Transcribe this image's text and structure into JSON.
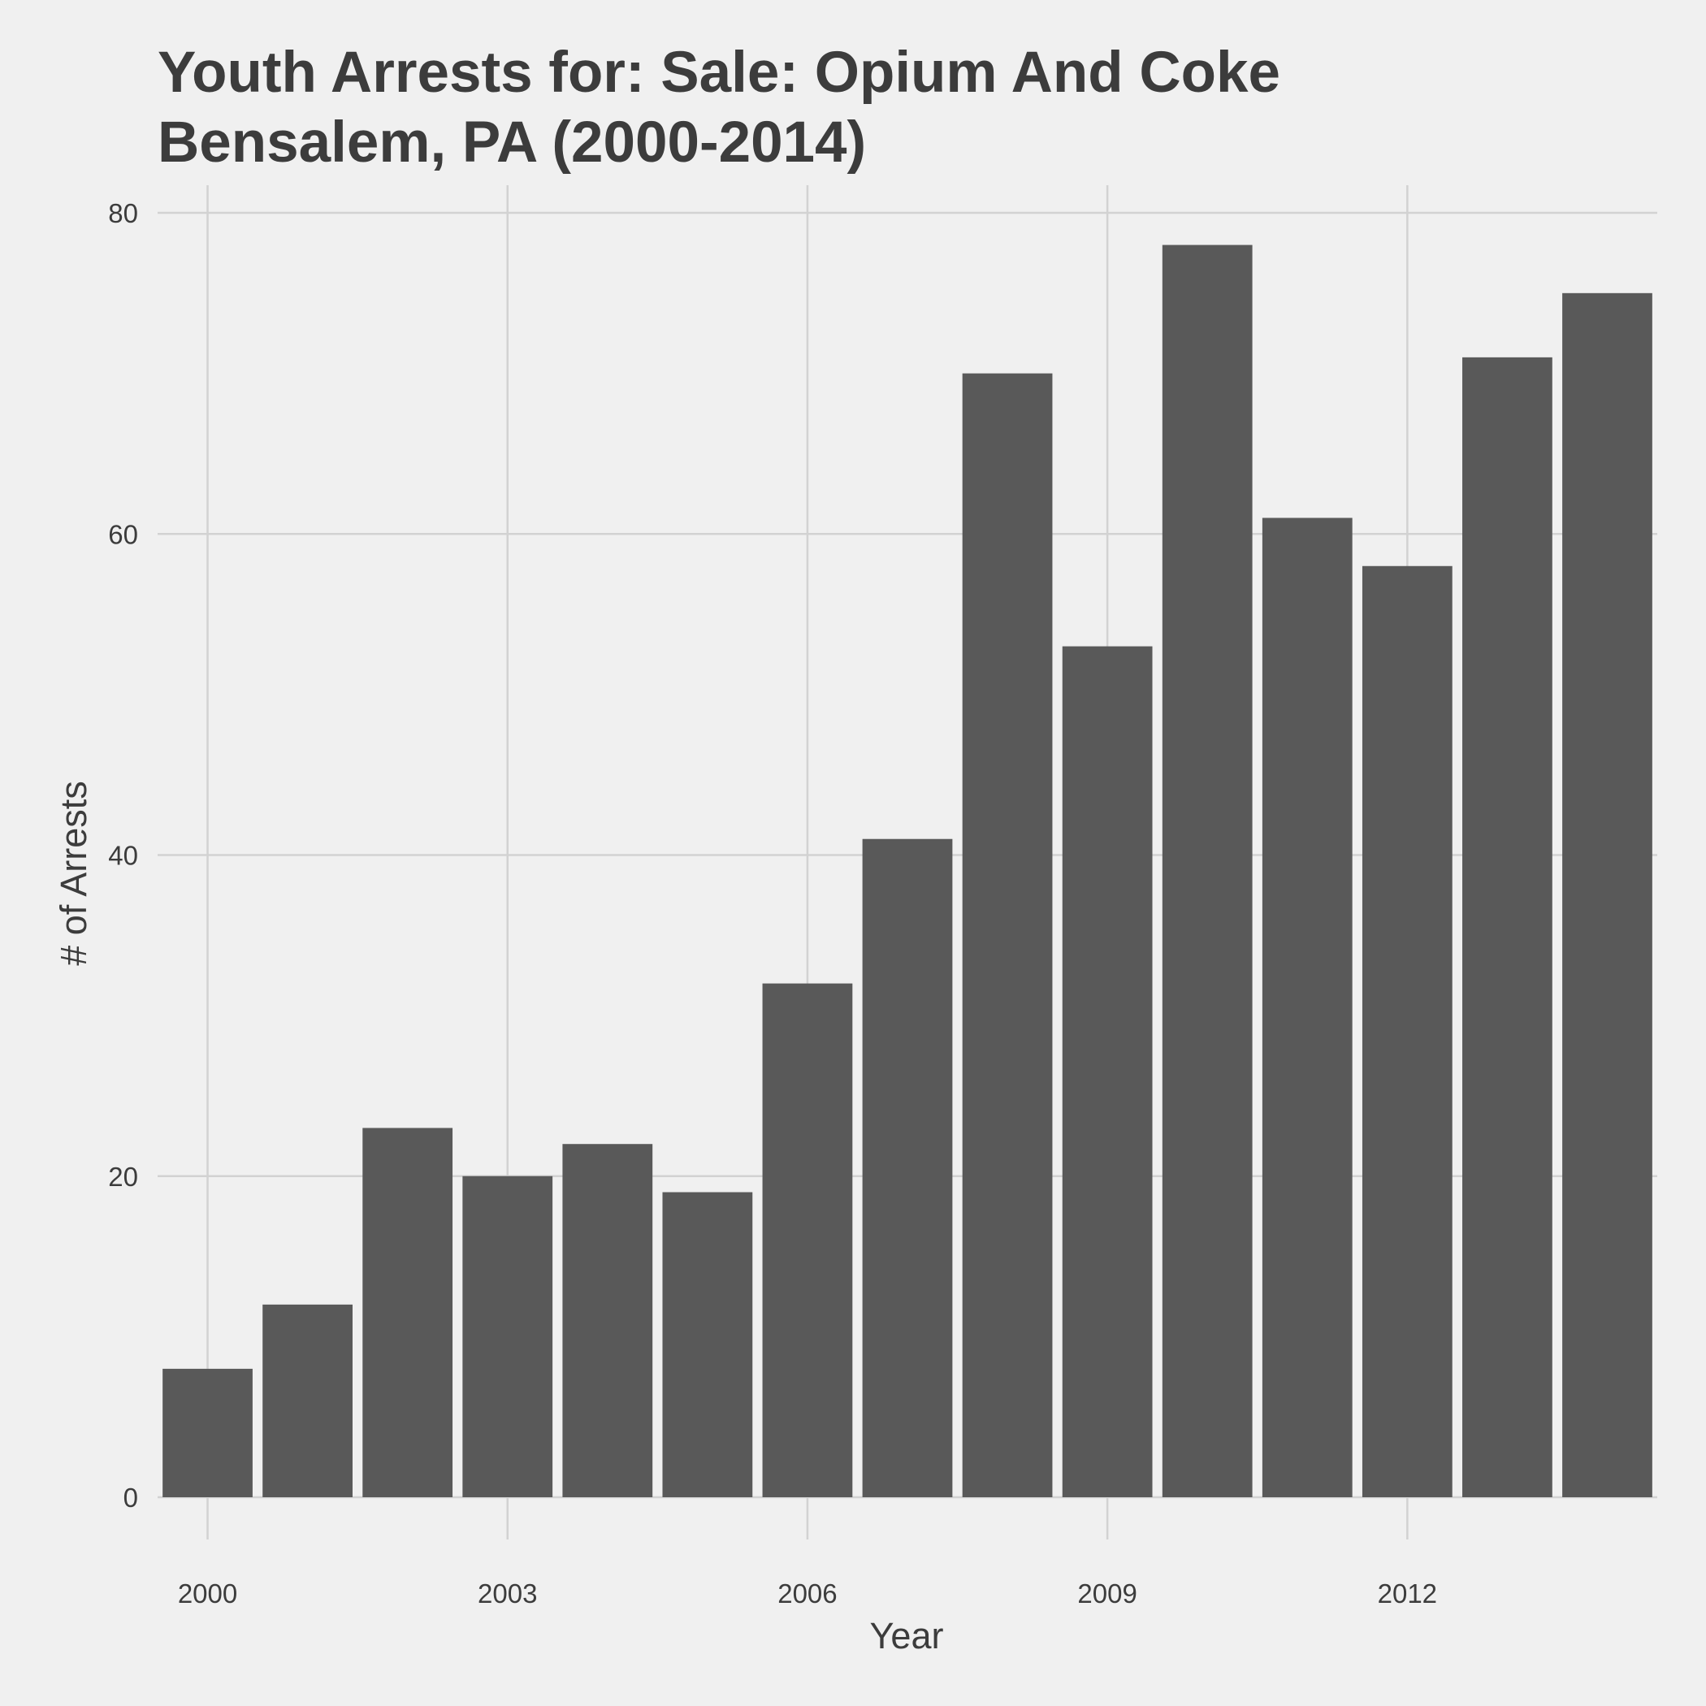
{
  "chart_data": {
    "type": "bar",
    "title": "Youth Arrests for: Sale: Opium And Coke",
    "subtitle": "Bensalem, PA (2000-2014)",
    "xlabel": "Year",
    "ylabel": "# of Arrests",
    "x": [
      2000,
      2001,
      2002,
      2003,
      2004,
      2005,
      2006,
      2007,
      2008,
      2009,
      2010,
      2011,
      2012,
      2013,
      2014
    ],
    "values": [
      8,
      12,
      23,
      20,
      22,
      19,
      32,
      41,
      70,
      53,
      78,
      61,
      58,
      71,
      75
    ],
    "xticks": [
      2000,
      2003,
      2006,
      2009,
      2012
    ],
    "xtick_labels": [
      "2000",
      "2003",
      "2006",
      "2009",
      "2012"
    ],
    "yticks": [
      0,
      20,
      40,
      60,
      80
    ],
    "ytick_labels": [
      "0",
      "20",
      "40",
      "60",
      "80"
    ],
    "ylim": [
      0,
      80
    ],
    "grid": true,
    "legend": "none",
    "colors": {
      "background": "#f0f0f0",
      "bar": "#595959",
      "grid": "#d2d2d2",
      "text": "#3c3c3c"
    }
  }
}
